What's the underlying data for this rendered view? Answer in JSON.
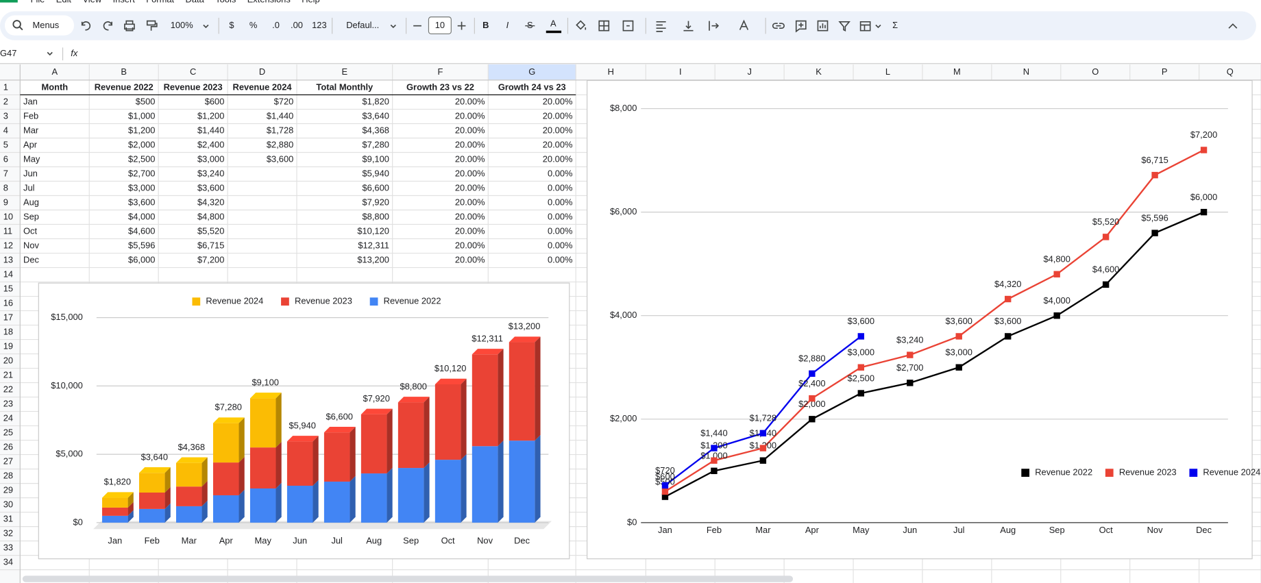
{
  "menu": [
    "File",
    "Edit",
    "View",
    "Insert",
    "Format",
    "Data",
    "Tools",
    "Extensions",
    "Help"
  ],
  "toolbar": {
    "search": "Menus",
    "zoom": "100%",
    "currency": "$",
    "percent": "%",
    "decrease_decimals": ".0",
    "increase_decimals": ".00",
    "number_format": "123",
    "font": "Defaul...",
    "font_size": "10",
    "bold": "B",
    "italic": "I",
    "strikethrough": "S",
    "text_color": "A",
    "sum": "Σ"
  },
  "name_box": "G47",
  "formula_label": "fx",
  "sheet": {
    "columns": [
      "A",
      "B",
      "C",
      "D",
      "E",
      "F",
      "G",
      "H",
      "I",
      "J",
      "K",
      "L",
      "M",
      "N",
      "O",
      "P",
      "Q"
    ],
    "rows": [
      1,
      2,
      3,
      4,
      5,
      6,
      7,
      8,
      9,
      10,
      11,
      12,
      13,
      14,
      15,
      16,
      17,
      18,
      19,
      20,
      21,
      22,
      23,
      24,
      25,
      26,
      27,
      28,
      29,
      30,
      31,
      32,
      33,
      34
    ],
    "header": [
      "Month",
      "Revenue 2022",
      "Revenue 2023",
      "Revenue 2024",
      "Total Monthly",
      "Growth 23 vs 22",
      "Growth 24 vs 23"
    ],
    "data": [
      [
        "Jan",
        "$500",
        "$600",
        "$720",
        "$1,820",
        "20.00%",
        "20.00%"
      ],
      [
        "Feb",
        "$1,000",
        "$1,200",
        "$1,440",
        "$3,640",
        "20.00%",
        "20.00%"
      ],
      [
        "Mar",
        "$1,200",
        "$1,440",
        "$1,728",
        "$4,368",
        "20.00%",
        "20.00%"
      ],
      [
        "Apr",
        "$2,000",
        "$2,400",
        "$2,880",
        "$7,280",
        "20.00%",
        "20.00%"
      ],
      [
        "May",
        "$2,500",
        "$3,000",
        "$3,600",
        "$9,100",
        "20.00%",
        "20.00%"
      ],
      [
        "Jun",
        "$2,700",
        "$3,240",
        null,
        "$5,940",
        "20.00%",
        "0.00%"
      ],
      [
        "Jul",
        "$3,000",
        "$3,600",
        null,
        "$6,600",
        "20.00%",
        "0.00%"
      ],
      [
        "Aug",
        "$3,600",
        "$4,320",
        null,
        "$7,920",
        "20.00%",
        "0.00%"
      ],
      [
        "Sep",
        "$4,000",
        "$4,800",
        null,
        "$8,800",
        "20.00%",
        "0.00%"
      ],
      [
        "Oct",
        "$4,600",
        "$5,520",
        null,
        "$10,120",
        "20.00%",
        "0.00%"
      ],
      [
        "Nov",
        "$5,596",
        "$6,715",
        null,
        "$12,311",
        "20.00%",
        "0.00%"
      ],
      [
        "Dec",
        "$6,000",
        "$7,200",
        null,
        "$13,200",
        "20.00%",
        "0.00%"
      ]
    ]
  },
  "chart_data": [
    {
      "type": "bar",
      "stacked": true,
      "three_d": true,
      "legend": "top",
      "categories": [
        "Jan",
        "Feb",
        "Mar",
        "Apr",
        "May",
        "Jun",
        "Jul",
        "Aug",
        "Sep",
        "Oct",
        "Nov",
        "Dec"
      ],
      "series": [
        {
          "name": "Revenue 2022",
          "color": "#4285f4",
          "values": [
            500,
            1000,
            1200,
            2000,
            2500,
            2700,
            3000,
            3600,
            4000,
            4600,
            5596,
            6000
          ]
        },
        {
          "name": "Revenue 2023",
          "color": "#ea4335",
          "values": [
            600,
            1200,
            1440,
            2400,
            3000,
            3240,
            3600,
            4320,
            4800,
            5520,
            6715,
            7200
          ]
        },
        {
          "name": "Revenue 2024",
          "color": "#fbbc04",
          "values": [
            720,
            1440,
            1728,
            2880,
            3600,
            null,
            null,
            null,
            null,
            null,
            null,
            null
          ]
        }
      ],
      "totals": [
        1820,
        3640,
        4368,
        7280,
        9100,
        5940,
        6600,
        7920,
        8800,
        10120,
        12311,
        13200
      ],
      "total_labels": [
        "$1,820",
        "$3,640",
        "$4,368",
        "$7,280",
        "$9,100",
        "$5,940",
        "$6,600",
        "$7,920",
        "$8,800",
        "$10,120",
        "$12,311",
        "$13,200"
      ],
      "ylim": [
        0,
        15000
      ],
      "yticks": [
        {
          "value": 0,
          "label": "$0"
        },
        {
          "value": 5000,
          "label": "$5,000"
        },
        {
          "value": 10000,
          "label": "$10,000"
        },
        {
          "value": 15000,
          "label": "$15,000"
        }
      ],
      "grid": true
    },
    {
      "type": "line",
      "legend": "right",
      "categories": [
        "Jan",
        "Feb",
        "Mar",
        "Apr",
        "May",
        "Jun",
        "Jul",
        "Aug",
        "Sep",
        "Oct",
        "Nov",
        "Dec"
      ],
      "series": [
        {
          "name": "Revenue 2022",
          "color": "#000000",
          "values": [
            500,
            1000,
            1200,
            2000,
            2500,
            2700,
            3000,
            3600,
            4000,
            4600,
            5596,
            6000
          ],
          "value_labels": [
            "$500",
            "$1,000",
            "$1,200",
            "$2,000",
            "$2,500",
            "$2,700",
            "$3,000",
            "$3,600",
            "$4,000",
            "$4,600",
            "$5,596",
            "$6,000"
          ]
        },
        {
          "name": "Revenue 2023",
          "color": "#ea4335",
          "values": [
            600,
            1200,
            1440,
            2400,
            3000,
            3240,
            3600,
            4320,
            4800,
            5520,
            6715,
            7200
          ],
          "value_labels": [
            "$600",
            "$1,200",
            "$1,440",
            "$2,400",
            "$3,000",
            "$3,240",
            "$3,600",
            "$4,320",
            "$4,800",
            "$5,520",
            "$6,715",
            "$7,200"
          ]
        },
        {
          "name": "Revenue 2024",
          "color": "#0000ee",
          "values": [
            720,
            1440,
            1728,
            2880,
            3600,
            null,
            null,
            null,
            null,
            null,
            null,
            null
          ],
          "value_labels": [
            "$720",
            "$1,440",
            "$1,728",
            "$2,880",
            "$3,600",
            null,
            null,
            null,
            null,
            null,
            null,
            null
          ]
        }
      ],
      "ylim": [
        0,
        8000
      ],
      "yticks": [
        {
          "value": 0,
          "label": "$0"
        },
        {
          "value": 2000,
          "label": "$2,000"
        },
        {
          "value": 4000,
          "label": "$4,000"
        },
        {
          "value": 6000,
          "label": "$6,000"
        },
        {
          "value": 8000,
          "label": "$8,000"
        }
      ],
      "grid": true
    }
  ]
}
